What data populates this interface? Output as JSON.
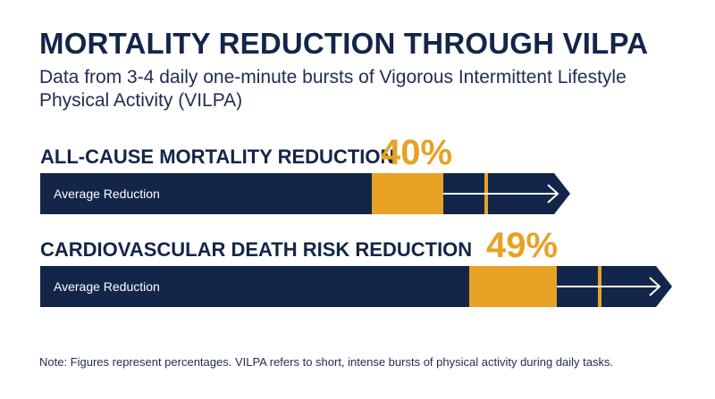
{
  "header": {
    "title": "MORTALITY REDUCTION THROUGH VILPA",
    "subtitle": "Data from 3-4 daily one-minute bursts of Vigorous Intermittent Lifestyle Physical Activity (VILPA)"
  },
  "chart_data": {
    "type": "bar",
    "orientation": "horizontal",
    "categories": [
      "ALL-CAUSE MORTALITY REDUCTION",
      "CARDIOVASCULAR DEATH RISK REDUCTION"
    ],
    "values": [
      40,
      49
    ],
    "value_labels": [
      "40%",
      "49%"
    ],
    "bar_text": [
      "Average Reduction",
      "Average Reduction"
    ],
    "xlim": [
      0,
      100
    ],
    "grid": false,
    "legend": "none"
  },
  "colors": {
    "navy": "#13264a",
    "accent": "#e7a226",
    "text": "#14254a"
  },
  "footer": {
    "note": "Note: Figures represent percentages. VILPA refers to short, intense bursts of physical activity during daily tasks."
  }
}
